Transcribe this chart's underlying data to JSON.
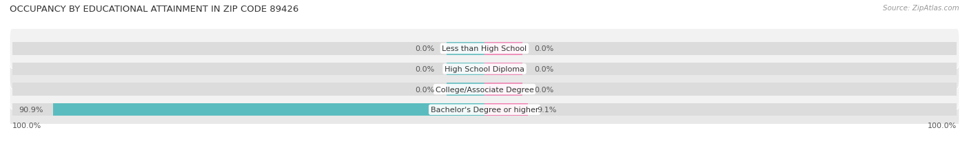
{
  "title": "OCCUPANCY BY EDUCATIONAL ATTAINMENT IN ZIP CODE 89426",
  "source": "Source: ZipAtlas.com",
  "categories": [
    "Less than High School",
    "High School Diploma",
    "College/Associate Degree",
    "Bachelor's Degree or higher"
  ],
  "owner_values": [
    0.0,
    0.0,
    0.0,
    90.9
  ],
  "renter_values": [
    0.0,
    0.0,
    0.0,
    9.1
  ],
  "owner_color": "#5bbcbf",
  "renter_color": "#f07db0",
  "bar_bg_color": "#dcdcdc",
  "row_bg_even": "#f2f2f2",
  "row_bg_odd": "#e8e8e8",
  "label_color": "#444444",
  "title_color": "#333333",
  "source_color": "#999999",
  "axis_label_left": "100.0%",
  "axis_label_right": "100.0%",
  "total_width": 100.0,
  "zero_block_size": 8.0,
  "figsize": [
    14.06,
    2.32
  ],
  "dpi": 100
}
